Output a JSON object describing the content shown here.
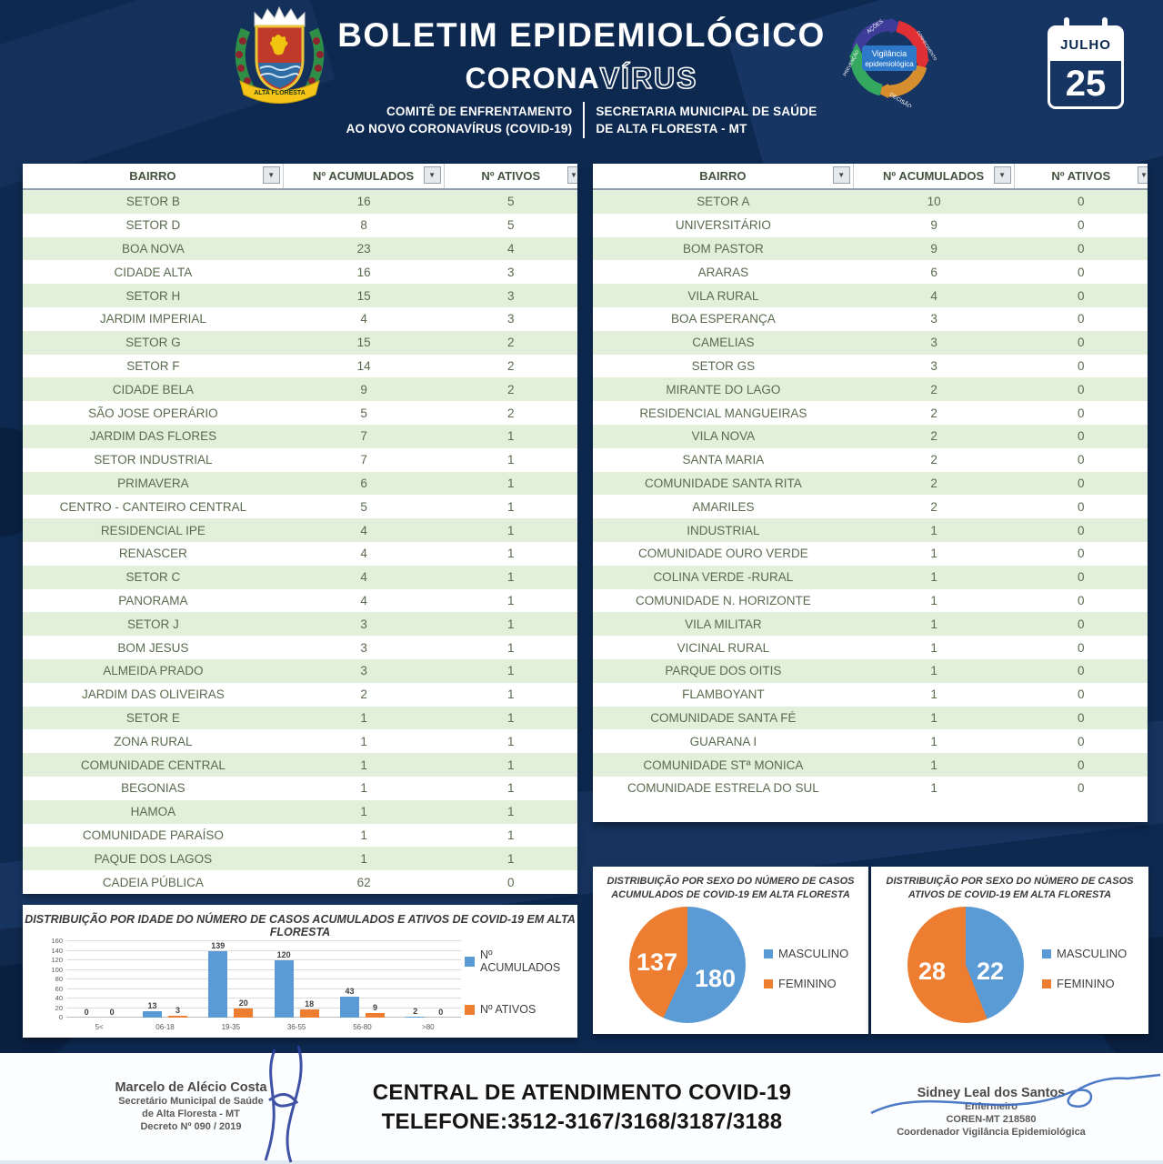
{
  "header": {
    "title_line1": "BOLETIM EPIDEMIOLÓGICO",
    "title_line2_solid": "CORONA",
    "title_line2_outline": "VÍRUS",
    "committee_line1": "COMITÊ DE ENFRENTAMENTO",
    "committee_line2": "AO NOVO CORONAVÍRUS (COVID-19)",
    "secretariat_line1": "SECRETARIA MUNICIPAL DE SAÚDE",
    "secretariat_line2": "DE ALTA FLORESTA - MT",
    "calendar": {
      "month": "JULHO",
      "day": "25"
    },
    "vigilancia_logo": {
      "center_line1": "Vigilância",
      "center_line2": "epidemiológica",
      "arrows": [
        "AÇÕES",
        "CONHECIMENTO",
        "DECISÃO",
        "PREVENÇÃO"
      ]
    },
    "crest_banner": "ALTA FLORESTA"
  },
  "tables": {
    "headers": [
      "BAIRRO",
      "Nº ACUMULADOS",
      "Nº ATIVOS"
    ],
    "left_rows": [
      [
        "SETOR B",
        16,
        5
      ],
      [
        "SETOR D",
        8,
        5
      ],
      [
        "BOA NOVA",
        23,
        4
      ],
      [
        "CIDADE ALTA",
        16,
        3
      ],
      [
        "SETOR H",
        15,
        3
      ],
      [
        "JARDIM IMPERIAL",
        4,
        3
      ],
      [
        "SETOR G",
        15,
        2
      ],
      [
        "SETOR F",
        14,
        2
      ],
      [
        "CIDADE BELA",
        9,
        2
      ],
      [
        "SÃO JOSE OPERÁRIO",
        5,
        2
      ],
      [
        "JARDIM DAS FLORES",
        7,
        1
      ],
      [
        "SETOR INDUSTRIAL",
        7,
        1
      ],
      [
        "PRIMAVERA",
        6,
        1
      ],
      [
        "CENTRO - CANTEIRO CENTRAL",
        5,
        1
      ],
      [
        "RESIDENCIAL IPE",
        4,
        1
      ],
      [
        "RENASCER",
        4,
        1
      ],
      [
        "SETOR C",
        4,
        1
      ],
      [
        "PANORAMA",
        4,
        1
      ],
      [
        "SETOR J",
        3,
        1
      ],
      [
        "BOM JESUS",
        3,
        1
      ],
      [
        "ALMEIDA PRADO",
        3,
        1
      ],
      [
        "JARDIM DAS OLIVEIRAS",
        2,
        1
      ],
      [
        "SETOR E",
        1,
        1
      ],
      [
        "ZONA RURAL",
        1,
        1
      ],
      [
        "COMUNIDADE CENTRAL",
        1,
        1
      ],
      [
        "BEGONIAS",
        1,
        1
      ],
      [
        "HAMOA",
        1,
        1
      ],
      [
        "COMUNIDADE PARAÍSO",
        1,
        1
      ],
      [
        "PAQUE DOS LAGOS",
        1,
        1
      ],
      [
        "CADEIA PÚBLICA",
        62,
        0
      ]
    ],
    "right_rows": [
      [
        "SETOR A",
        10,
        0
      ],
      [
        "UNIVERSITÁRIO",
        9,
        0
      ],
      [
        "BOM PASTOR",
        9,
        0
      ],
      [
        "ARARAS",
        6,
        0
      ],
      [
        "VILA RURAL",
        4,
        0
      ],
      [
        "BOA ESPERANÇA",
        3,
        0
      ],
      [
        "CAMELIAS",
        3,
        0
      ],
      [
        "SETOR GS",
        3,
        0
      ],
      [
        "MIRANTE DO LAGO",
        2,
        0
      ],
      [
        "RESIDENCIAL MANGUEIRAS",
        2,
        0
      ],
      [
        "VILA NOVA",
        2,
        0
      ],
      [
        "SANTA MARIA",
        2,
        0
      ],
      [
        "COMUNIDADE SANTA RITA",
        2,
        0
      ],
      [
        "AMARILES",
        2,
        0
      ],
      [
        "INDUSTRIAL",
        1,
        0
      ],
      [
        "COMUNIDADE OURO VERDE",
        1,
        0
      ],
      [
        "COLINA VERDE -RURAL",
        1,
        0
      ],
      [
        "COMUNIDADE N. HORIZONTE",
        1,
        0
      ],
      [
        "VILA MILITAR",
        1,
        0
      ],
      [
        "VICINAL RURAL",
        1,
        0
      ],
      [
        "PARQUE DOS OITIS",
        1,
        0
      ],
      [
        "FLAMBOYANT",
        1,
        0
      ],
      [
        "COMUNIDADE SANTA FÉ",
        1,
        0
      ],
      [
        "GUARANA I",
        1,
        0
      ],
      [
        "COMUNIDADE STª MONICA",
        1,
        0
      ],
      [
        "COMUNIDADE ESTRELA DO SUL",
        1,
        0
      ]
    ]
  },
  "chart_data": [
    {
      "type": "bar",
      "title": "DISTRIBUIÇÃO POR IDADE DO NÚMERO DE CASOS ACUMULADOS E ATIVOS DE COVID-19 EM ALTA FLORESTA",
      "categories": [
        "5<",
        "06-18",
        "19-35",
        "36-55",
        "56-80",
        ">80"
      ],
      "series": [
        {
          "name": "Nº ACUMULADOS",
          "color": "#5b9bd5",
          "values": [
            0,
            13,
            139,
            120,
            43,
            2
          ]
        },
        {
          "name": "Nº ATIVOS",
          "color": "#ed7d31",
          "values": [
            0,
            3,
            20,
            18,
            9,
            0
          ]
        }
      ],
      "xlabel": "",
      "ylabel": "",
      "ylim": [
        0,
        160
      ],
      "ytick_step": 20,
      "grid": true,
      "legend_position": "right"
    },
    {
      "type": "pie",
      "title_line1": "DISTRIBUIÇÃO POR SEXO DO NÚMERO DE CASOS",
      "title_line2": "ACUMULADOS DE COVID-19 EM ALTA FLORESTA",
      "labels": [
        "MASCULINO",
        "FEMININO"
      ],
      "values": [
        180,
        137
      ],
      "colors": [
        "#5b9bd5",
        "#ed7d31"
      ],
      "legend_position": "right"
    },
    {
      "type": "pie",
      "title_line1": "DISTRIBUIÇÃO POR SEXO DO NÚMERO DE CASOS",
      "title_line2": "ATIVOS DE COVID-19 EM ALTA FLORESTA",
      "labels": [
        "MASCULINO",
        "FEMININO"
      ],
      "values": [
        22,
        28
      ],
      "colors": [
        "#5b9bd5",
        "#ed7d31"
      ],
      "legend_position": "right"
    }
  ],
  "footer": {
    "left_signature": {
      "name": "Marcelo de Alécio Costa",
      "line2": "Secretário Municipal de Saúde",
      "line3": "de Alta Floresta - MT",
      "line4": "Decreto Nº 090 / 2019"
    },
    "center": {
      "line1": "CENTRAL DE ATENDIMENTO COVID-19",
      "line2": "TELEFONE:3512-3167/3168/3187/3188"
    },
    "right_signature": {
      "name": "Sidney Leal dos Santos",
      "line2": "Enfermeiro",
      "line3": "COREN-MT 218580",
      "line4": "Coordenador Vigilância Epidemiológica"
    }
  },
  "colors": {
    "background_navy": "#0d2950",
    "table_stripe_green": "#e2efda",
    "table_text_green": "#5a6b4e",
    "chart_blue": "#5b9bd5",
    "chart_orange": "#ed7d31"
  }
}
